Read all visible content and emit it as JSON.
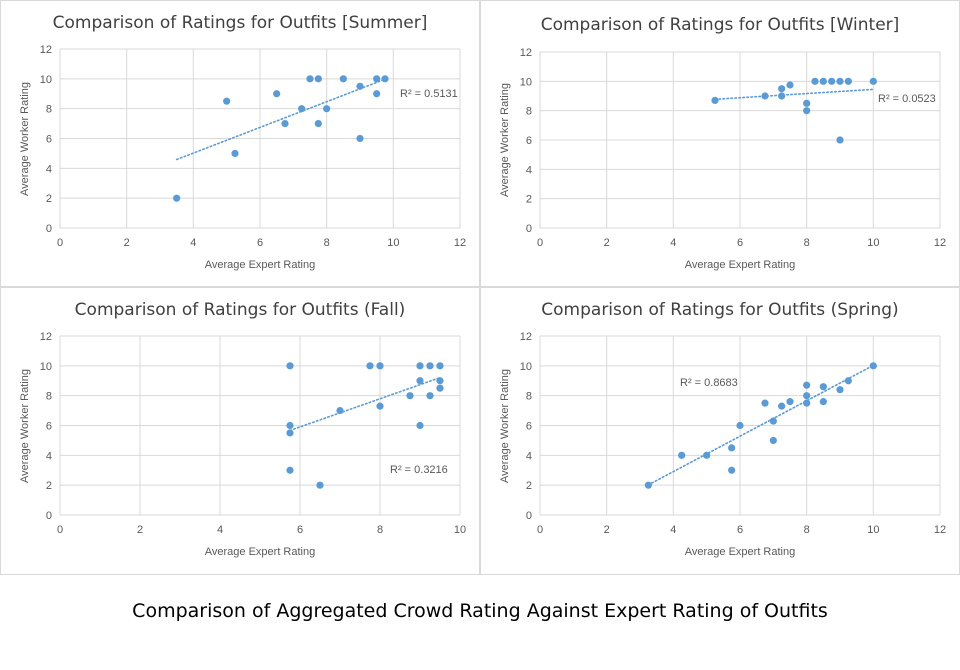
{
  "figure_caption": "Comparison of Aggregated Crowd Rating Against Expert Rating of Outfits",
  "colors": {
    "marker": "#5b9bd5",
    "grid": "#d9d9d9",
    "axis_text": "#595959",
    "title_text": "#404040",
    "border": "#d9d9d9"
  },
  "chart_data": [
    {
      "type": "scatter",
      "title": "Comparison of Ratings for Outfits [Summer]",
      "xlabel": "Average Expert Rating",
      "ylabel": "Average Worker Rating",
      "xlim": [
        0,
        12
      ],
      "ylim": [
        0,
        12
      ],
      "xticks": [
        0,
        2,
        4,
        6,
        8,
        10,
        12
      ],
      "yticks": [
        0,
        2,
        4,
        6,
        8,
        10,
        12
      ],
      "grid": true,
      "trendline": "linear, dotted",
      "r2_label": "R² = 0.5131",
      "points": [
        [
          3.5,
          2
        ],
        [
          5,
          8.5
        ],
        [
          5.25,
          5
        ],
        [
          6.5,
          9
        ],
        [
          6.75,
          7
        ],
        [
          7.25,
          8
        ],
        [
          7.5,
          10
        ],
        [
          7.75,
          10
        ],
        [
          7.75,
          7
        ],
        [
          8,
          8
        ],
        [
          8.5,
          10
        ],
        [
          9,
          9.5
        ],
        [
          9,
          6
        ],
        [
          9.5,
          10
        ],
        [
          9.5,
          9
        ],
        [
          9.75,
          10
        ]
      ]
    },
    {
      "type": "scatter",
      "title": "Comparison of Ratings for Outfits [Winter]",
      "xlabel": "Average Expert Rating",
      "ylabel": "Average Worker Rating",
      "xlim": [
        0,
        12
      ],
      "ylim": [
        0,
        12
      ],
      "xticks": [
        0,
        2,
        4,
        6,
        8,
        10,
        12
      ],
      "yticks": [
        0,
        2,
        4,
        6,
        8,
        10,
        12
      ],
      "grid": true,
      "trendline": "linear, dotted",
      "r2_label": "R² = 0.0523",
      "points": [
        [
          5.25,
          8.7
        ],
        [
          6.75,
          9
        ],
        [
          7.25,
          9.5
        ],
        [
          7.25,
          9
        ],
        [
          7.5,
          9.75
        ],
        [
          8,
          8.5
        ],
        [
          8,
          8
        ],
        [
          8.25,
          10
        ],
        [
          8.5,
          10
        ],
        [
          8.75,
          10
        ],
        [
          9,
          10
        ],
        [
          9,
          6
        ],
        [
          9.25,
          10
        ],
        [
          10,
          10
        ]
      ]
    },
    {
      "type": "scatter",
      "title": "Comparison of Ratings for Outfits (Fall)",
      "xlabel": "Average Expert Rating",
      "ylabel": "Average Worker Rating",
      "xlim": [
        0,
        10
      ],
      "ylim": [
        0,
        12
      ],
      "xticks": [
        0,
        2,
        4,
        6,
        8,
        10
      ],
      "yticks": [
        0,
        2,
        4,
        6,
        8,
        10,
        12
      ],
      "grid": true,
      "trendline": "linear, dotted",
      "r2_label": "R² = 0.3216",
      "points": [
        [
          5.75,
          10
        ],
        [
          5.75,
          6
        ],
        [
          5.75,
          5.5
        ],
        [
          5.75,
          3
        ],
        [
          6.5,
          2
        ],
        [
          7,
          7
        ],
        [
          7.75,
          10
        ],
        [
          8,
          10
        ],
        [
          8,
          7.3
        ],
        [
          8.75,
          8
        ],
        [
          9,
          10
        ],
        [
          9,
          9
        ],
        [
          9,
          6
        ],
        [
          9.25,
          10
        ],
        [
          9.25,
          8
        ],
        [
          9.5,
          10
        ],
        [
          9.5,
          9
        ],
        [
          9.5,
          8.5
        ]
      ]
    },
    {
      "type": "scatter",
      "title": "Comparison of Ratings for Outfits (Spring)",
      "xlabel": "Average Expert Rating",
      "ylabel": "Average Worker Rating",
      "xlim": [
        0,
        12
      ],
      "ylim": [
        0,
        12
      ],
      "xticks": [
        0,
        2,
        4,
        6,
        8,
        10,
        12
      ],
      "yticks": [
        0,
        2,
        4,
        6,
        8,
        10,
        12
      ],
      "grid": true,
      "trendline": "linear, dotted",
      "r2_label": "R² = 0.8683",
      "points": [
        [
          3.25,
          2
        ],
        [
          4.25,
          4
        ],
        [
          5,
          4
        ],
        [
          5.75,
          4.5
        ],
        [
          5.75,
          3
        ],
        [
          6,
          6
        ],
        [
          6.75,
          7.5
        ],
        [
          7,
          6.3
        ],
        [
          7,
          5
        ],
        [
          7.25,
          7.3
        ],
        [
          7.5,
          7.6
        ],
        [
          8,
          8.7
        ],
        [
          8,
          8
        ],
        [
          8,
          7.5
        ],
        [
          8.5,
          8.6
        ],
        [
          8.5,
          7.6
        ],
        [
          9,
          8.4
        ],
        [
          9.25,
          9
        ],
        [
          10,
          10
        ]
      ]
    }
  ]
}
